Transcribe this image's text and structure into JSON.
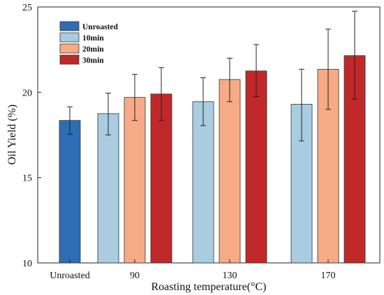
{
  "chart_data": {
    "type": "bar",
    "xlabel": "Roasting temperature(°C)",
    "ylabel": "Oil Yield (%)",
    "ylim": [
      10,
      25
    ],
    "yticks": [
      "10",
      "15",
      "20",
      "25"
    ],
    "categories": [
      "Unroasted",
      "90",
      "130",
      "170"
    ],
    "legend_position": "top-left",
    "legend": [
      {
        "label": "Unroasted",
        "color": "#2e6db4"
      },
      {
        "label": "10min",
        "color": "#a9cce0"
      },
      {
        "label": "20min",
        "color": "#f6ab86"
      },
      {
        "label": "30min",
        "color": "#c0282a"
      }
    ],
    "bars": [
      {
        "category": "Unroasted",
        "series": "Unroasted",
        "value": 18.35,
        "err_low": 17.55,
        "err_high": 19.15
      },
      {
        "category": "90",
        "series": "10min",
        "value": 18.75,
        "err_low": 17.5,
        "err_high": 19.95
      },
      {
        "category": "90",
        "series": "20min",
        "value": 19.7,
        "err_low": 18.35,
        "err_high": 21.05
      },
      {
        "category": "90",
        "series": "30min",
        "value": 19.9,
        "err_low": 18.35,
        "err_high": 21.45
      },
      {
        "category": "130",
        "series": "10min",
        "value": 19.45,
        "err_low": 18.05,
        "err_high": 20.85
      },
      {
        "category": "130",
        "series": "20min",
        "value": 20.75,
        "err_low": 19.45,
        "err_high": 22.0
      },
      {
        "category": "130",
        "series": "30min",
        "value": 21.25,
        "err_low": 19.75,
        "err_high": 22.8
      },
      {
        "category": "170",
        "series": "10min",
        "value": 19.3,
        "err_low": 17.15,
        "err_high": 21.35
      },
      {
        "category": "170",
        "series": "20min",
        "value": 21.35,
        "err_low": 19.0,
        "err_high": 23.7
      },
      {
        "category": "170",
        "series": "30min",
        "value": 22.15,
        "err_low": 19.6,
        "err_high": 24.75
      }
    ]
  }
}
